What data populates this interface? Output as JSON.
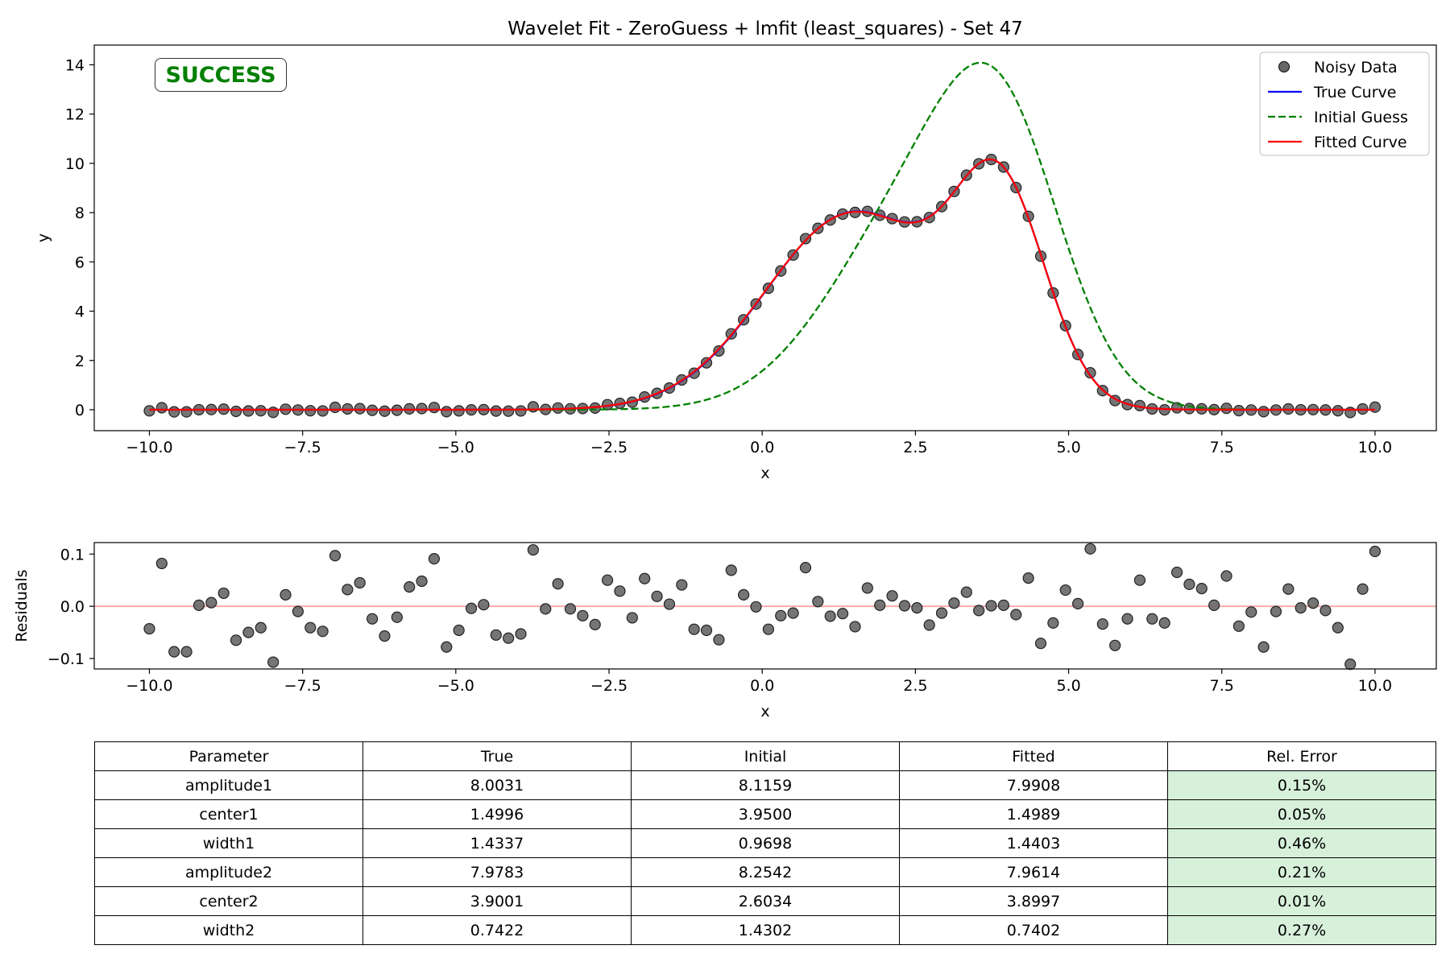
{
  "chart_data": [
    {
      "type": "line",
      "title": "Wavelet Fit - ZeroGuess + lmfit (least_squares) - Set 47",
      "xlabel": "x",
      "ylabel": "y",
      "xlim": [
        -10.9,
        11.0
      ],
      "ylim": [
        -0.85,
        14.8
      ],
      "xticks": [
        -10.0,
        -7.5,
        -5.0,
        -2.5,
        0.0,
        2.5,
        5.0,
        7.5,
        10.0
      ],
      "xtick_labels": [
        "−10.0",
        "−7.5",
        "−5.0",
        "−2.5",
        "0.0",
        "2.5",
        "5.0",
        "7.5",
        "10.0"
      ],
      "yticks": [
        0,
        2,
        4,
        6,
        8,
        10,
        12,
        14
      ],
      "ytick_labels": [
        "0",
        "2",
        "4",
        "6",
        "8",
        "10",
        "12",
        "14"
      ],
      "grid": false,
      "legend_position": "top-right",
      "status_badge": "SUCCESS",
      "series": [
        {
          "name": "Noisy Data",
          "kind": "scatter",
          "color": "#666666"
        },
        {
          "name": "True Curve",
          "kind": "line",
          "color": "#0000ff",
          "params": {
            "a1": 8.0031,
            "c1": 1.4996,
            "w1": 1.4337,
            "a2": 7.9783,
            "c2": 3.9001,
            "w2": 0.7422
          }
        },
        {
          "name": "Initial Guess",
          "kind": "line",
          "style": "dashed",
          "color": "#008000",
          "params": {
            "a1": 8.1159,
            "c1": 3.95,
            "w1": 0.9698,
            "a2": 8.2542,
            "c2": 2.6034,
            "w2": 1.4302
          }
        },
        {
          "name": "Fitted Curve",
          "kind": "line",
          "color": "#ff0000",
          "params": {
            "a1": 7.9908,
            "c1": 1.4989,
            "w1": 1.4403,
            "a2": 7.9614,
            "c2": 3.8997,
            "w2": 0.7402
          }
        }
      ],
      "x_start": -10.0,
      "x_end": 10.0,
      "n_points": 100,
      "residuals": [
        -0.043,
        0.082,
        -0.087,
        -0.087,
        0.002,
        0.007,
        0.025,
        -0.065,
        -0.05,
        -0.041,
        -0.107,
        0.022,
        -0.01,
        -0.041,
        -0.048,
        0.097,
        0.032,
        0.045,
        -0.024,
        -0.057,
        -0.021,
        0.037,
        0.048,
        0.091,
        -0.078,
        -0.046,
        -0.004,
        0.003,
        -0.055,
        -0.061,
        -0.053,
        0.108,
        -0.005,
        0.043,
        -0.005,
        -0.018,
        -0.035,
        0.05,
        0.029,
        -0.022,
        0.053,
        0.019,
        0.004,
        0.041,
        -0.044,
        -0.046,
        -0.064,
        0.069,
        0.022,
        -0.001,
        -0.044,
        -0.018,
        -0.013,
        0.074,
        0.009,
        -0.019,
        -0.014,
        -0.039,
        0.035,
        0.002,
        0.02,
        0.001,
        -0.003,
        -0.036,
        -0.013,
        0.006,
        0.027,
        -0.008,
        0.001,
        0.002,
        -0.016,
        0.054,
        -0.071,
        -0.032,
        0.031,
        0.005,
        0.11,
        -0.034,
        -0.075,
        -0.024,
        0.05,
        -0.024,
        -0.032,
        0.065,
        0.042,
        0.034,
        0.002,
        0.058,
        -0.038,
        -0.011,
        -0.078,
        -0.01,
        0.033,
        -0.003,
        0.006,
        -0.008,
        -0.041,
        -0.111,
        0.033,
        0.105
      ]
    },
    {
      "type": "scatter",
      "xlabel": "x",
      "ylabel": "Residuals",
      "xlim": [
        -10.9,
        11.0
      ],
      "ylim": [
        -0.12,
        0.122
      ],
      "xticks": [
        -10.0,
        -7.5,
        -5.0,
        -2.5,
        0.0,
        2.5,
        5.0,
        7.5,
        10.0
      ],
      "xtick_labels": [
        "−10.0",
        "−7.5",
        "−5.0",
        "−2.5",
        "0.0",
        "2.5",
        "5.0",
        "7.5",
        "10.0"
      ],
      "yticks": [
        -0.1,
        0.0,
        0.1
      ],
      "ytick_labels": [
        "−0.1",
        "0.0",
        "0.1"
      ],
      "zero_line_color": "#ffaaaa",
      "grid": false
    },
    {
      "type": "table",
      "columns": [
        "Parameter",
        "True",
        "Initial",
        "Fitted",
        "Rel. Error"
      ],
      "rows": [
        [
          "amplitude1",
          "8.0031",
          "8.1159",
          "7.9908",
          "0.15%"
        ],
        [
          "center1",
          "1.4996",
          "3.9500",
          "1.4989",
          "0.05%"
        ],
        [
          "width1",
          "1.4337",
          "0.9698",
          "1.4403",
          "0.46%"
        ],
        [
          "amplitude2",
          "7.9783",
          "8.2542",
          "7.9614",
          "0.21%"
        ],
        [
          "center2",
          "3.9001",
          "2.6034",
          "3.8997",
          "0.01%"
        ],
        [
          "width2",
          "0.7422",
          "1.4302",
          "0.7402",
          "0.27%"
        ]
      ],
      "error_cell_color": "#d7f0da"
    }
  ]
}
